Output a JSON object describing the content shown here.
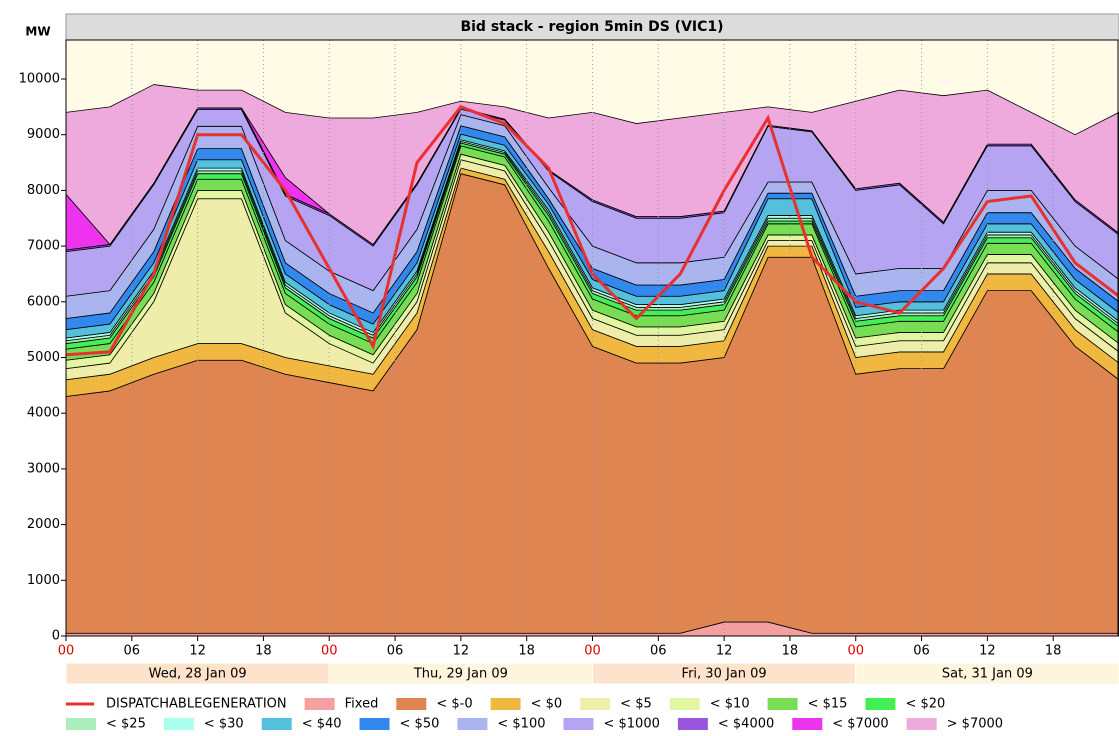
{
  "chart_data": {
    "type": "stacked-area",
    "title": "Bid stack - region 5min DS (VIC1)",
    "y_label": "MW",
    "x": [
      0,
      4,
      8,
      12,
      16,
      20,
      24,
      28,
      32,
      36,
      40,
      44,
      48,
      52,
      56,
      60,
      64,
      68,
      72,
      76,
      80,
      84,
      88,
      92,
      96
    ],
    "xlim": [
      0,
      96
    ],
    "xticks": [
      {
        "value": 0,
        "label": "00"
      },
      {
        "value": 6,
        "label": "06"
      },
      {
        "value": 12,
        "label": "12"
      },
      {
        "value": 18,
        "label": "18"
      },
      {
        "value": 24,
        "label": "00"
      },
      {
        "value": 30,
        "label": "06"
      },
      {
        "value": 36,
        "label": "12"
      },
      {
        "value": 42,
        "label": "18"
      },
      {
        "value": 48,
        "label": "00"
      },
      {
        "value": 54,
        "label": "06"
      },
      {
        "value": 60,
        "label": "12"
      },
      {
        "value": 66,
        "label": "18"
      },
      {
        "value": 72,
        "label": "00"
      },
      {
        "value": 78,
        "label": "06"
      },
      {
        "value": 84,
        "label": "12"
      },
      {
        "value": 90,
        "label": "18"
      }
    ],
    "days": [
      "Wed, 28 Jan 09",
      "Thu, 29 Jan 09",
      "Fri, 30 Jan 09",
      "Sat, 31 Jan 09"
    ],
    "ylim": [
      0,
      10700
    ],
    "yticks": [
      0,
      1000,
      2000,
      3000,
      4000,
      5000,
      6000,
      7000,
      8000,
      9000,
      10000
    ],
    "grid": "x",
    "line": {
      "name": "DISPATCHABLEGENERATION",
      "color": "#e83030",
      "values": [
        5050,
        5100,
        6500,
        9000,
        9000,
        8000,
        6600,
        5200,
        8500,
        9500,
        9200,
        8400,
        6500,
        5700,
        6500,
        8000,
        9300,
        6800,
        6000,
        5800,
        6600,
        7800,
        7900,
        6700,
        6100
      ]
    },
    "series": [
      {
        "name": "Fixed",
        "color": "#f4a0a0",
        "values": [
          50,
          50,
          50,
          50,
          50,
          50,
          50,
          50,
          50,
          50,
          50,
          50,
          50,
          50,
          50,
          250,
          250,
          50,
          50,
          50,
          50,
          50,
          50,
          50,
          50
        ]
      },
      {
        "name": "< $-0",
        "color": "#df8552",
        "values": [
          4250,
          4350,
          4650,
          4900,
          4900,
          4650,
          4500,
          4350,
          5450,
          8250,
          8050,
          6550,
          5150,
          4850,
          4850,
          4750,
          6550,
          6750,
          4650,
          4750,
          4750,
          6150,
          6150,
          5150,
          4550
        ]
      },
      {
        "name": "< $0",
        "color": "#f0b840",
        "values": [
          300,
          300,
          300,
          300,
          300,
          300,
          300,
          300,
          300,
          100,
          100,
          300,
          300,
          300,
          300,
          300,
          200,
          200,
          300,
          300,
          300,
          300,
          300,
          300,
          300
        ]
      },
      {
        "name": "< $5",
        "color": "#eeeeaa",
        "values": [
          200,
          200,
          1000,
          2600,
          2600,
          800,
          400,
          200,
          200,
          150,
          150,
          200,
          200,
          200,
          200,
          200,
          100,
          100,
          200,
          200,
          200,
          200,
          200,
          200,
          200
        ]
      },
      {
        "name": "< $10",
        "color": "#e2f5a0",
        "values": [
          150,
          150,
          150,
          150,
          150,
          150,
          150,
          150,
          150,
          100,
          100,
          150,
          150,
          150,
          150,
          150,
          100,
          100,
          150,
          150,
          150,
          150,
          150,
          150,
          150
        ]
      },
      {
        "name": "< $15",
        "color": "#77dd55",
        "values": [
          200,
          200,
          200,
          200,
          200,
          200,
          200,
          200,
          200,
          150,
          150,
          200,
          200,
          200,
          200,
          200,
          200,
          200,
          200,
          200,
          200,
          200,
          200,
          200,
          200
        ]
      },
      {
        "name": "< $20",
        "color": "#44ee55",
        "values": [
          100,
          100,
          100,
          100,
          100,
          100,
          100,
          100,
          100,
          50,
          50,
          100,
          100,
          100,
          100,
          100,
          50,
          50,
          100,
          100,
          100,
          100,
          100,
          100,
          100
        ]
      },
      {
        "name": "< $25",
        "color": "#aaeebb",
        "values": [
          50,
          50,
          50,
          50,
          50,
          50,
          50,
          50,
          50,
          30,
          30,
          50,
          50,
          50,
          50,
          50,
          50,
          50,
          50,
          50,
          50,
          50,
          50,
          50,
          50
        ]
      },
      {
        "name": "< $30",
        "color": "#aaffee",
        "values": [
          50,
          50,
          50,
          50,
          50,
          50,
          50,
          50,
          50,
          30,
          30,
          50,
          50,
          50,
          50,
          50,
          50,
          50,
          50,
          50,
          50,
          50,
          50,
          50,
          50
        ]
      },
      {
        "name": "< $40",
        "color": "#55c0dd",
        "values": [
          150,
          150,
          150,
          150,
          150,
          150,
          150,
          150,
          150,
          100,
          100,
          100,
          150,
          150,
          150,
          150,
          300,
          300,
          150,
          150,
          150,
          150,
          150,
          150,
          150
        ]
      },
      {
        "name": "< $50",
        "color": "#3388ee",
        "values": [
          200,
          200,
          200,
          200,
          200,
          200,
          200,
          200,
          200,
          150,
          150,
          100,
          200,
          200,
          200,
          200,
          100,
          100,
          200,
          200,
          200,
          200,
          200,
          200,
          200
        ]
      },
      {
        "name": "< $100",
        "color": "#aab4ee",
        "values": [
          400,
          400,
          400,
          400,
          400,
          400,
          400,
          400,
          400,
          200,
          200,
          200,
          400,
          400,
          400,
          400,
          200,
          200,
          400,
          400,
          400,
          400,
          400,
          400,
          400
        ]
      },
      {
        "name": "< $1000",
        "color": "#b4a4f2",
        "values": [
          800,
          800,
          800,
          300,
          300,
          800,
          1000,
          800,
          800,
          100,
          100,
          300,
          800,
          800,
          800,
          800,
          1000,
          900,
          1500,
          1500,
          800,
          800,
          800,
          800,
          800
        ]
      },
      {
        "name": "< $4000",
        "color": "#9955dd",
        "values": [
          30,
          30,
          30,
          30,
          30,
          30,
          30,
          30,
          30,
          20,
          20,
          20,
          30,
          30,
          30,
          30,
          20,
          20,
          30,
          30,
          30,
          30,
          30,
          30,
          30
        ]
      },
      {
        "name": "< $7000",
        "color": "#ee33ee",
        "values": [
          1000,
          0,
          0,
          0,
          0,
          300,
          0,
          0,
          0,
          0,
          0,
          0,
          0,
          0,
          0,
          0,
          0,
          0,
          0,
          0,
          0,
          0,
          0,
          0,
          0
        ]
      },
      {
        "name": "> $7000",
        "color": "#eeaadd",
        "values": [
          1470,
          2470,
          1770,
          320,
          320,
          1170,
          1720,
          2270,
          1270,
          120,
          220,
          930,
          1570,
          1670,
          1770,
          1770,
          330,
          330,
          1570,
          1670,
          2270,
          970,
          570,
          1170,
          2170
        ]
      }
    ]
  }
}
